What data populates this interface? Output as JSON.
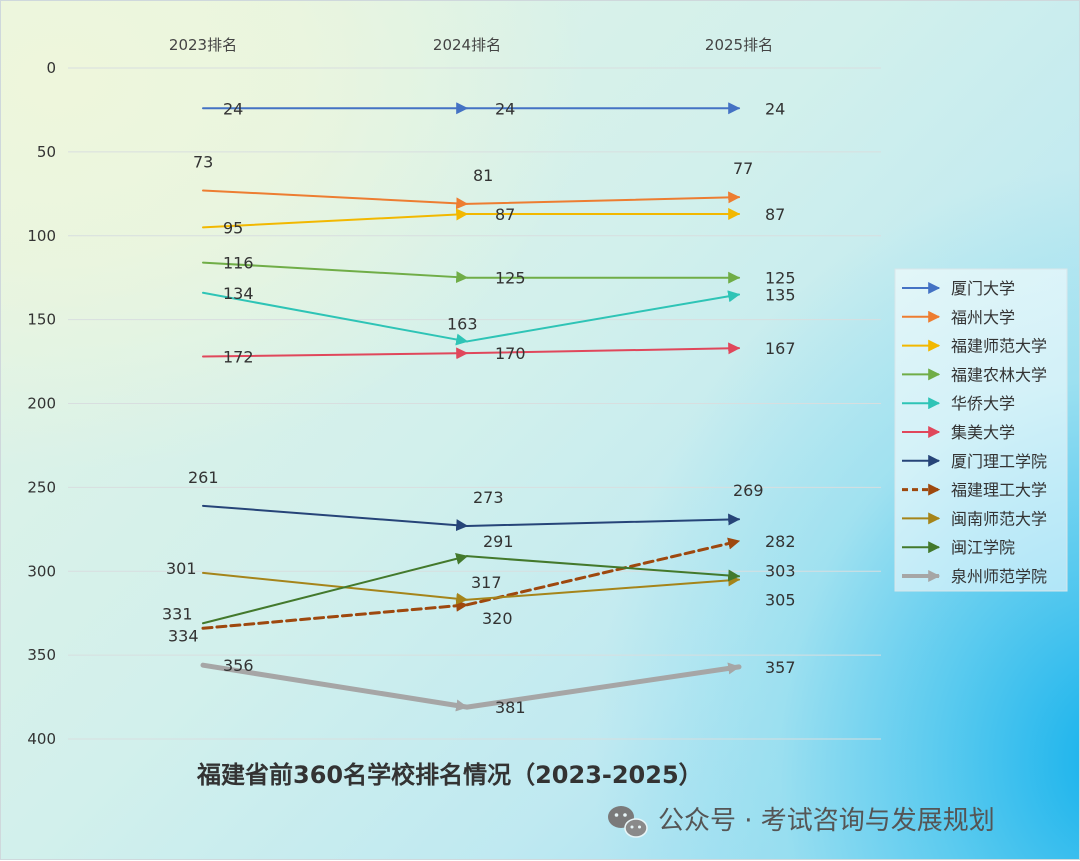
{
  "chart_data": {
    "type": "line",
    "title": "福建省前360名学校排名情况（2023-2025）",
    "categories": [
      "2023排名",
      "2024排名",
      "2025排名"
    ],
    "ylim": [
      0,
      400
    ],
    "y_inverted": true,
    "yticks": [
      0,
      50,
      100,
      150,
      200,
      250,
      300,
      350,
      400
    ],
    "grid": true,
    "legend_position": "right",
    "series": [
      {
        "name": "厦门大学",
        "values": [
          24,
          24,
          24
        ],
        "color": "#4472C4",
        "dash": false,
        "width": 2
      },
      {
        "name": "福州大学",
        "values": [
          73,
          81,
          77
        ],
        "color": "#ED7D31",
        "dash": false,
        "width": 2
      },
      {
        "name": "福建师范大学",
        "values": [
          95,
          87,
          87
        ],
        "color": "#F2B800",
        "dash": false,
        "width": 2
      },
      {
        "name": "福建农林大学",
        "values": [
          116,
          125,
          125
        ],
        "color": "#70AD47",
        "dash": false,
        "width": 2
      },
      {
        "name": "华侨大学",
        "values": [
          134,
          163,
          135
        ],
        "color": "#2EC4B6",
        "dash": false,
        "width": 2
      },
      {
        "name": "集美大学",
        "values": [
          172,
          170,
          167
        ],
        "color": "#E0475B",
        "dash": false,
        "width": 2
      },
      {
        "name": "厦门理工学院",
        "values": [
          261,
          273,
          269
        ],
        "color": "#264478",
        "dash": false,
        "width": 2
      },
      {
        "name": "福建理工大学",
        "values": [
          334,
          320,
          282
        ],
        "color": "#9E480E",
        "dash": true,
        "width": 3
      },
      {
        "name": "闽南师范大学",
        "values": [
          301,
          317,
          305
        ],
        "color": "#A5841A",
        "dash": false,
        "width": 2
      },
      {
        "name": "闽江学院",
        "values": [
          331,
          291,
          303
        ],
        "color": "#43792C",
        "dash": false,
        "width": 2
      },
      {
        "name": "泉州师范学院",
        "values": [
          356,
          381,
          357
        ],
        "color": "#A6A6A6",
        "dash": false,
        "width": 5
      }
    ],
    "value_labels": [
      {
        "text": "24",
        "series": 0,
        "point": 0
      },
      {
        "text": "24",
        "series": 0,
        "point": 1
      },
      {
        "text": "24",
        "series": 0,
        "point": 2
      },
      {
        "text": "73",
        "series": 1,
        "point": 0
      },
      {
        "text": "81",
        "series": 1,
        "point": 1
      },
      {
        "text": "77",
        "series": 1,
        "point": 2
      },
      {
        "text": "95",
        "series": 2,
        "point": 0
      },
      {
        "text": "87",
        "series": 2,
        "point": 1
      },
      {
        "text": "87",
        "series": 2,
        "point": 2
      },
      {
        "text": "116",
        "series": 3,
        "point": 0
      },
      {
        "text": "125",
        "series": 3,
        "point": 1
      },
      {
        "text": "125",
        "series": 3,
        "point": 2
      },
      {
        "text": "134",
        "series": 4,
        "point": 0
      },
      {
        "text": "163",
        "series": 4,
        "point": 1
      },
      {
        "text": "135",
        "series": 4,
        "point": 2
      },
      {
        "text": "172",
        "series": 5,
        "point": 0
      },
      {
        "text": "170",
        "series": 5,
        "point": 1
      },
      {
        "text": "167",
        "series": 5,
        "point": 2
      },
      {
        "text": "261",
        "series": 6,
        "point": 0
      },
      {
        "text": "273",
        "series": 6,
        "point": 1
      },
      {
        "text": "269",
        "series": 6,
        "point": 2
      },
      {
        "text": "334",
        "series": 7,
        "point": 0
      },
      {
        "text": "320",
        "series": 7,
        "point": 1
      },
      {
        "text": "282",
        "series": 7,
        "point": 2
      },
      {
        "text": "301",
        "series": 8,
        "point": 0
      },
      {
        "text": "317",
        "series": 8,
        "point": 1
      },
      {
        "text": "305",
        "series": 8,
        "point": 2
      },
      {
        "text": "331",
        "series": 9,
        "point": 0
      },
      {
        "text": "291",
        "series": 9,
        "point": 1
      },
      {
        "text": "303",
        "series": 9,
        "point": 2
      },
      {
        "text": "356",
        "series": 10,
        "point": 0
      },
      {
        "text": "381",
        "series": 10,
        "point": 1
      },
      {
        "text": "357",
        "series": 10,
        "point": 2
      }
    ]
  },
  "watermark": {
    "text": "公众号 · 考试咨询与发展规划",
    "icon": "wechat-icon"
  }
}
